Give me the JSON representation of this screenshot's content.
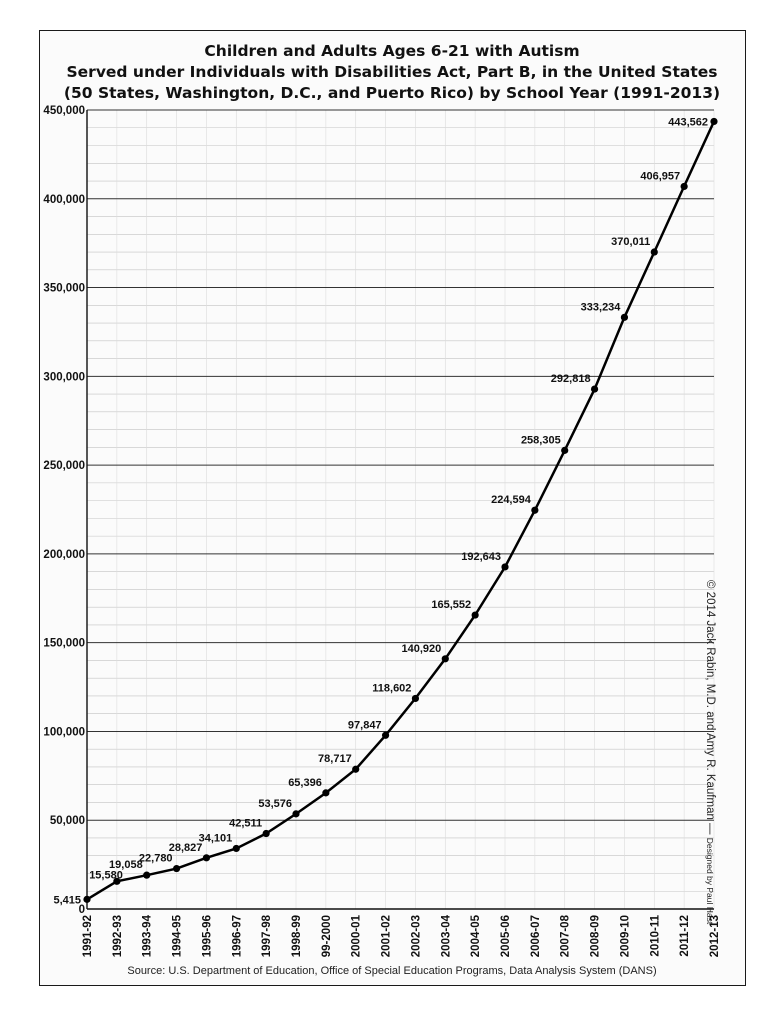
{
  "chart_data": {
    "type": "line",
    "title": "Children and Adults Ages 6-21 with Autism",
    "subtitle_line1": "Served under Individuals with Disabilities Act, Part B, in the United States",
    "subtitle_line2": "(50 States, Washington, D.C., and Puerto Rico) by School Year (1991-2013)",
    "categories": [
      "1991-92",
      "1992-93",
      "1993-94",
      "1994-95",
      "1995-96",
      "1996-97",
      "1997-98",
      "1998-99",
      "99-2000",
      "2000-01",
      "2001-02",
      "2002-03",
      "2003-04",
      "2004-05",
      "2005-06",
      "2006-07",
      "2007-08",
      "2008-09",
      "2009-10",
      "2010-11",
      "2011-12",
      "2012-13"
    ],
    "values": [
      5415,
      15580,
      19058,
      22780,
      28827,
      34101,
      42511,
      53576,
      65396,
      78717,
      97847,
      118602,
      140920,
      165552,
      192643,
      224594,
      258305,
      292818,
      333234,
      370011,
      406957,
      443562
    ],
    "value_labels": [
      "5,415",
      "15,580",
      "19,058",
      "22,780",
      "28,827",
      "34,101",
      "42,511",
      "53,576",
      "65,396",
      "78,717",
      "97,847",
      "118,602",
      "140,920",
      "165,552",
      "192,643",
      "224,594",
      "258,305",
      "292,818",
      "333,234",
      "370,011",
      "406,957",
      "443,562"
    ],
    "y_ticks": [
      0,
      50000,
      100000,
      150000,
      200000,
      250000,
      300000,
      350000,
      400000,
      450000
    ],
    "y_tick_labels": [
      "0",
      "50,000",
      "100,000",
      "150,000",
      "200,000",
      "250,000",
      "300,000",
      "350,000",
      "400,000",
      "450,000"
    ],
    "ylim": [
      0,
      450000
    ],
    "grid": true,
    "line_color": "#000000"
  },
  "source": "Source: U.S. Department of Education, Office of Special Education Programs, Data Analysis System (DANS)",
  "copyright": "© 2014 Jack Rabin, M.D. and Amy R. Kaufman —",
  "designed_by": "Designed by Paul Hast"
}
